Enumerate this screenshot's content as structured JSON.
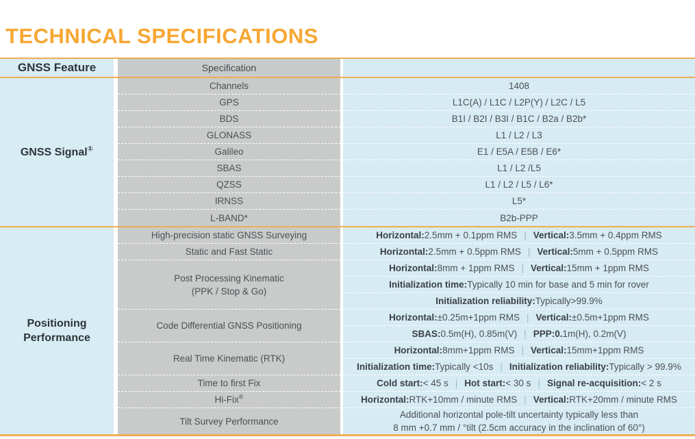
{
  "title": "TECHNICAL SPECIFICATIONS",
  "colors": {
    "accent_orange": "#F7A733",
    "border_orange": "#EFAE52",
    "light_blue": "#D8ECF4",
    "gray": "#C9CACA"
  },
  "header": {
    "feature": "GNSS Feature",
    "specification": "Specification"
  },
  "sections": [
    {
      "label_lines": [
        "GNSS Signal"
      ],
      "label_sup": "①",
      "rows": [
        {
          "param_lines": [
            "Channels"
          ],
          "values": [
            [
              [
                {
                  "t": "1408"
                }
              ]
            ]
          ]
        },
        {
          "param_lines": [
            "GPS"
          ],
          "values": [
            [
              [
                {
                  "t": "L1C(A) / L1C / L2P(Y) / L2C / L5"
                }
              ]
            ]
          ]
        },
        {
          "param_lines": [
            "BDS"
          ],
          "values": [
            [
              [
                {
                  "t": "B1I / B2I / B3I / B1C / B2a / B2b*"
                }
              ]
            ]
          ]
        },
        {
          "param_lines": [
            "GLONASS"
          ],
          "values": [
            [
              [
                {
                  "t": "L1 / L2 / L3"
                }
              ]
            ]
          ]
        },
        {
          "param_lines": [
            "Galileo"
          ],
          "values": [
            [
              [
                {
                  "t": "E1 / E5A / E5B / E6*"
                }
              ]
            ]
          ]
        },
        {
          "param_lines": [
            "SBAS"
          ],
          "values": [
            [
              [
                {
                  "t": "L1 / L2 /L5"
                }
              ]
            ]
          ]
        },
        {
          "param_lines": [
            "QZSS"
          ],
          "values": [
            [
              [
                {
                  "t": "L1 / L2 / L5 / L6*"
                }
              ]
            ]
          ]
        },
        {
          "param_lines": [
            "IRNSS"
          ],
          "values": [
            [
              [
                {
                  "t": "L5*"
                }
              ]
            ]
          ]
        },
        {
          "param_lines": [
            "L-BAND*"
          ],
          "values": [
            [
              [
                {
                  "t": "B2b-PPP"
                }
              ]
            ]
          ]
        }
      ]
    },
    {
      "label_lines": [
        "Positioning",
        "Performance"
      ],
      "label_sup": "",
      "rows": [
        {
          "param_lines": [
            "High-precision static GNSS Surveying"
          ],
          "values": [
            [
              [
                {
                  "b": "Horizontal:"
                },
                {
                  "t": "2.5mm + 0.1ppm RMS"
                },
                {
                  "p": true
                },
                {
                  "b": "Vertical:"
                },
                {
                  "t": "3.5mm + 0.4ppm RMS"
                }
              ]
            ]
          ]
        },
        {
          "param_lines": [
            "Static and Fast Static"
          ],
          "values": [
            [
              [
                {
                  "b": "Horizontal:"
                },
                {
                  "t": "2.5mm + 0.5ppm RMS"
                },
                {
                  "p": true
                },
                {
                  "b": "Vertical:"
                },
                {
                  "t": "5mm + 0.5ppm RMS"
                }
              ]
            ]
          ]
        },
        {
          "param_lines": [
            "Post Processing Kinematic",
            "(PPK / Stop & Go)"
          ],
          "values": [
            [
              [
                {
                  "b": "Horizontal:"
                },
                {
                  "t": "8mm + 1ppm RMS"
                },
                {
                  "p": true
                },
                {
                  "b": "Vertical:"
                },
                {
                  "t": "15mm + 1ppm RMS"
                }
              ]
            ],
            [
              [
                {
                  "b": "Initialization time:"
                },
                {
                  "t": "Typically 10 min for base and 5 min for rover"
                }
              ]
            ],
            [
              [
                {
                  "b": "Initialization reliability:"
                },
                {
                  "t": "Typically>99.9%"
                }
              ]
            ]
          ]
        },
        {
          "param_lines": [
            "Code Differential GNSS Positioning"
          ],
          "values": [
            [
              [
                {
                  "b": "Horizontal:"
                },
                {
                  "t": "±0.25m+1ppm RMS"
                },
                {
                  "p": true
                },
                {
                  "b": "Vertical:"
                },
                {
                  "t": "±0.5m+1ppm RMS"
                }
              ]
            ],
            [
              [
                {
                  "b": "SBAS:"
                },
                {
                  "t": "0.5m(H), 0.85m(V)"
                },
                {
                  "p": true
                },
                {
                  "b": "PPP:0."
                },
                {
                  "t": "1m(H), 0.2m(V)"
                }
              ]
            ]
          ]
        },
        {
          "param_lines": [
            "Real Time Kinematic (RTK)"
          ],
          "values": [
            [
              [
                {
                  "b": "Horizontal:"
                },
                {
                  "t": "8mm+1ppm RMS"
                },
                {
                  "p": true
                },
                {
                  "b": "Vertical:"
                },
                {
                  "t": "15mm+1ppm RMS"
                }
              ]
            ],
            [
              [
                {
                  "b": "Initialization time:"
                },
                {
                  "t": "Typically <10s"
                },
                {
                  "p": true
                },
                {
                  "b": "Initialization reliability:"
                },
                {
                  "t": "Typically > 99.9%"
                }
              ]
            ]
          ]
        },
        {
          "param_lines": [
            "Time to first Fix"
          ],
          "values": [
            [
              [
                {
                  "b": "Cold start:"
                },
                {
                  "t": "< 45 s"
                },
                {
                  "p": true
                },
                {
                  "b": "Hot start:"
                },
                {
                  "t": "< 30 s"
                },
                {
                  "p": true
                },
                {
                  "b": "Signal re-acquisition:"
                },
                {
                  "t": "< 2 s"
                }
              ]
            ]
          ]
        },
        {
          "param_lines": [
            "Hi-Fix"
          ],
          "param_sup": "®",
          "values": [
            [
              [
                {
                  "b": "Horizontal:"
                },
                {
                  "t": "RTK+10mm / minute RMS"
                },
                {
                  "p": true
                },
                {
                  "b": "Vertical:"
                },
                {
                  "t": "RTK+20mm / minute RMS"
                }
              ]
            ]
          ]
        },
        {
          "param_lines": [
            "Tilt Survey Performance"
          ],
          "values": [
            [
              [
                {
                  "t": "Additional horizontal pole-tilt uncertainty typically less than"
                }
              ],
              [
                {
                  "t": "8 mm +0.7 mm / °tilt (2.5cm accuracy in the inclination of 60°)"
                }
              ]
            ]
          ]
        }
      ]
    }
  ]
}
